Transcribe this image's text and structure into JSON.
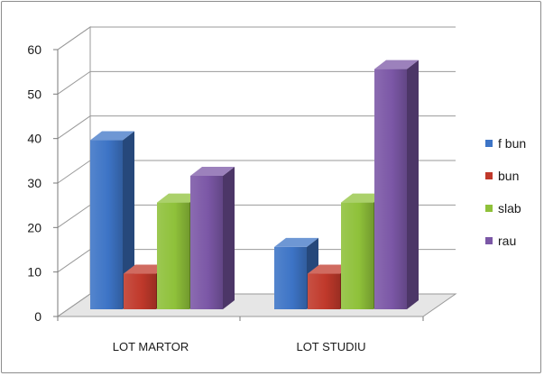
{
  "chart_data": {
    "type": "bar",
    "categories": [
      "LOT MARTOR",
      "LOT STUDIU"
    ],
    "series": [
      {
        "name": "f bun",
        "values": [
          38,
          14
        ],
        "color": "#3d74c6"
      },
      {
        "name": "bun",
        "values": [
          8,
          8
        ],
        "color": "#c0392b"
      },
      {
        "name": "slab",
        "values": [
          24,
          24
        ],
        "color": "#8fc13a"
      },
      {
        "name": "rau",
        "values": [
          30,
          54
        ],
        "color": "#7b57a6"
      }
    ],
    "ylim": [
      0,
      60
    ],
    "yticks": [
      0,
      10,
      20,
      30,
      40,
      50,
      60
    ],
    "grid": true,
    "legend": "right",
    "style": "3d-clustered-column"
  }
}
